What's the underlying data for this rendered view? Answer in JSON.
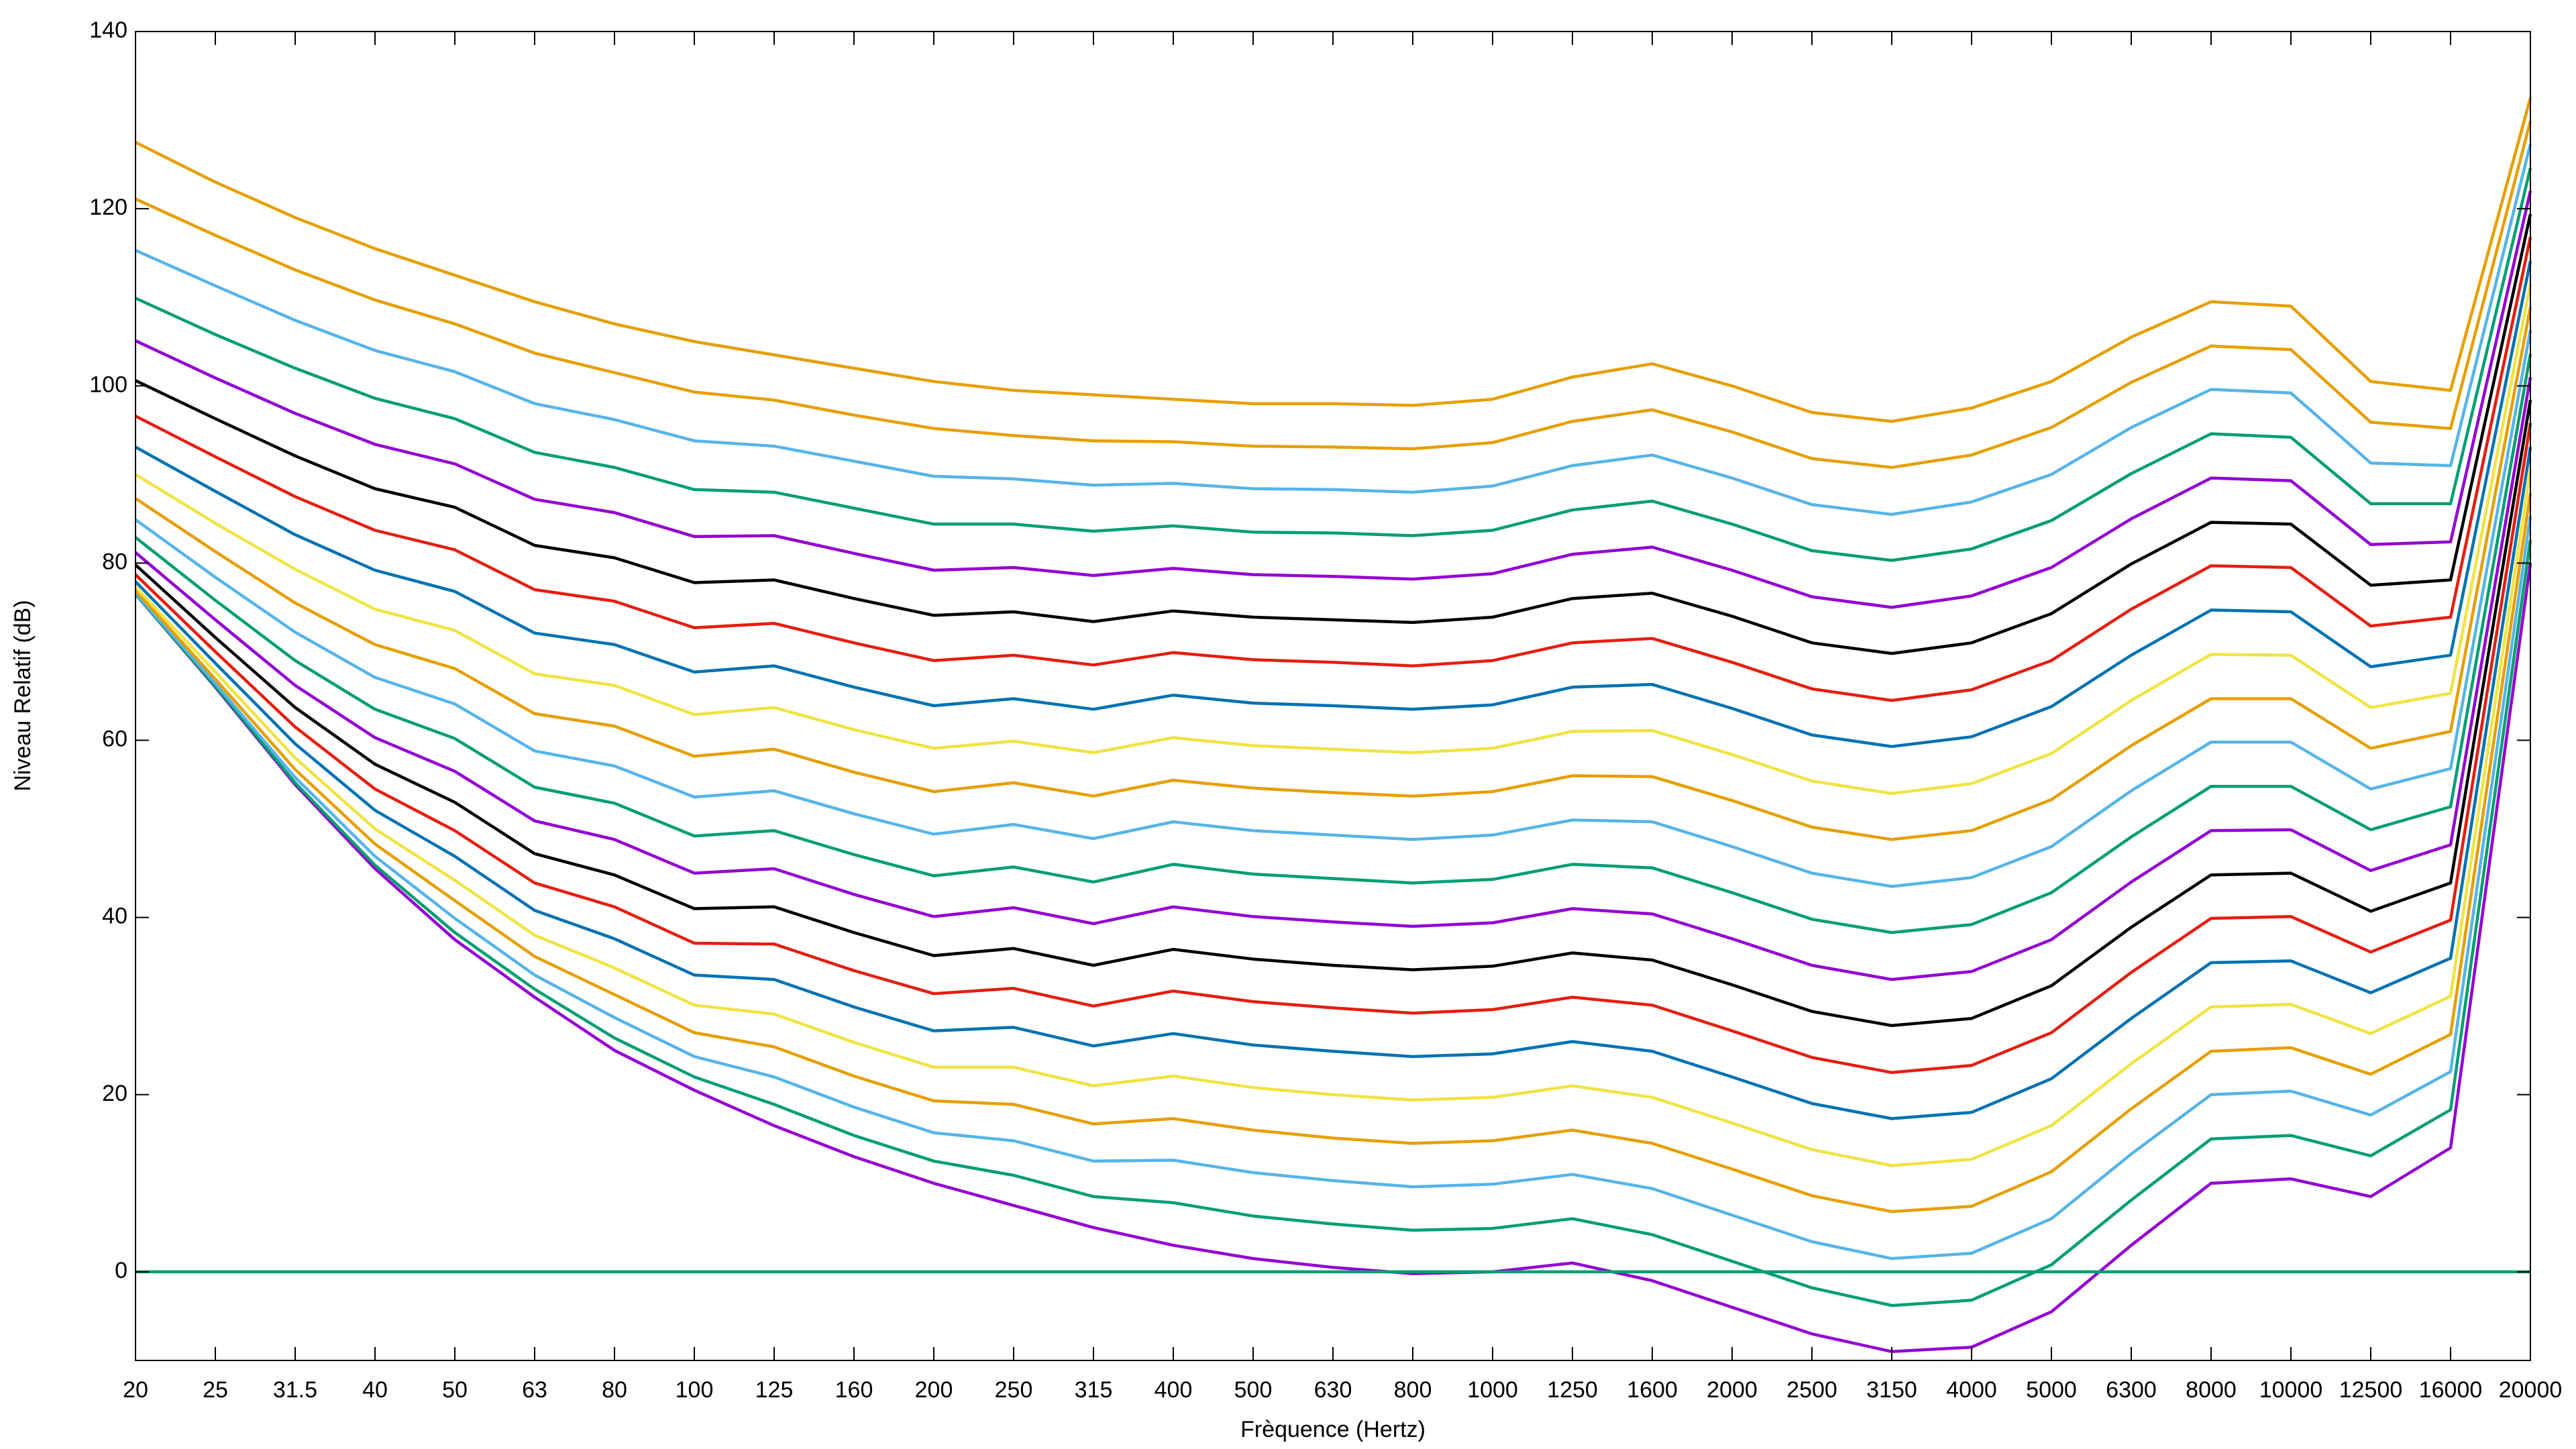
{
  "chart_data": {
    "type": "line",
    "xlabel": "Frèquence (Hertz)",
    "ylabel": "Niveau Relatif (dB)",
    "categories": [
      "20",
      "25",
      "31.5",
      "40",
      "50",
      "63",
      "80",
      "100",
      "125",
      "160",
      "200",
      "250",
      "315",
      "400",
      "500",
      "630",
      "800",
      "1000",
      "1250",
      "1600",
      "2000",
      "2500",
      "3150",
      "4000",
      "5000",
      "6300",
      "8000",
      "10000",
      "12500",
      "16000",
      "20000"
    ],
    "ylim": [
      -10,
      140
    ],
    "yticks": [
      0,
      20,
      40,
      60,
      80,
      100,
      120,
      140
    ],
    "grid": false,
    "series": [
      {
        "color": "#9400d3",
        "values": [
          76.5,
          66,
          55,
          45.5,
          37.5,
          31,
          25,
          20.5,
          16.5,
          13,
          10,
          7.5,
          5,
          3,
          1.5,
          0.5,
          -0.2,
          0,
          1,
          -1,
          -4,
          -7,
          -9,
          -8.5,
          -4.5,
          3,
          10,
          10.5,
          8.5,
          14,
          80
        ]
      },
      {
        "color": "#009e73",
        "values": [
          76.5,
          66.1,
          55.2,
          45.9,
          38.3,
          31.9,
          26.4,
          22.0,
          18.9,
          15.4,
          12.5,
          10.9,
          8.5,
          7.8,
          6.3,
          5.4,
          4.7,
          4.9,
          6,
          4.2,
          1.2,
          -1.8,
          -3.8,
          -3.2,
          0.8,
          8.1,
          15,
          15.4,
          13.1,
          18.3,
          82.6
        ]
      },
      {
        "color": "#56b4e9",
        "values": [
          76.6,
          66.4,
          55.8,
          46.9,
          39.9,
          33.5,
          28.7,
          24.3,
          22.0,
          18.6,
          15.7,
          14.8,
          12.5,
          12.6,
          11.2,
          10.3,
          9.6,
          9.9,
          11,
          9.4,
          6.4,
          3.4,
          1.5,
          2.1,
          6,
          13.3,
          20,
          20.4,
          17.7,
          22.6,
          85.3
        ]
      },
      {
        "color": "#e69f00",
        "values": [
          76.9,
          66.9,
          56.7,
          48.3,
          41.9,
          35.6,
          31.3,
          27.0,
          25.4,
          22.1,
          19.3,
          18.9,
          16.7,
          17.3,
          16,
          15.1,
          14.5,
          14.8,
          16,
          14.5,
          11.6,
          8.6,
          6.8,
          7.4,
          11.3,
          18.4,
          24.9,
          25.3,
          22.3,
          26.8,
          87.9
        ]
      },
      {
        "color": "#f0e442",
        "values": [
          77.3,
          67.7,
          58,
          50,
          44.2,
          38,
          34.3,
          30.1,
          29.1,
          25.9,
          23.1,
          23.1,
          21,
          22.1,
          20.8,
          20,
          19.4,
          19.7,
          21,
          19.7,
          16.8,
          13.8,
          12,
          12.7,
          16.5,
          23.5,
          29.9,
          30.2,
          26.9,
          31.1,
          90.5
        ]
      },
      {
        "color": "#0072b2",
        "values": [
          77.9,
          68.7,
          59.6,
          52.1,
          46.9,
          40.8,
          37.6,
          33.5,
          33,
          29.9,
          27.2,
          27.6,
          25.5,
          26.9,
          25.6,
          24.9,
          24.3,
          24.6,
          26,
          24.9,
          22,
          19,
          17.3,
          18,
          21.8,
          28.6,
          34.9,
          35.1,
          31.5,
          35.4,
          93.1
        ]
      },
      {
        "color": "#e51e10",
        "values": [
          78.7,
          70,
          61.5,
          54.5,
          49.8,
          43.9,
          41.2,
          37.1,
          37.0,
          34,
          31.4,
          32,
          30,
          31.7,
          30.5,
          29.8,
          29.2,
          29.6,
          31,
          30.1,
          27.2,
          24.2,
          22.5,
          23.3,
          27,
          33.8,
          39.9,
          40.1,
          36.1,
          39.7,
          95.8
        ]
      },
      {
        "color": "#000000",
        "values": [
          79.8,
          71.6,
          63.7,
          57.3,
          53,
          47.2,
          44.8,
          41,
          41.2,
          38.3,
          35.7,
          36.5,
          34.6,
          36.4,
          35.3,
          34.6,
          34.1,
          34.5,
          36,
          35.2,
          32.4,
          29.4,
          27.8,
          28.6,
          32.3,
          38.9,
          44.8,
          45,
          40.7,
          43.9,
          98.4
        ]
      },
      {
        "color": "#9400d3",
        "values": [
          81.2,
          73.6,
          66.2,
          60.3,
          56.5,
          50.9,
          48.8,
          45,
          45.5,
          42.6,
          40.1,
          41.1,
          39.3,
          41.2,
          40.1,
          39.5,
          39,
          39.4,
          41,
          40.4,
          37.6,
          34.6,
          33,
          33.9,
          37.5,
          44,
          49.8,
          49.9,
          45.3,
          48.2,
          101
        ]
      },
      {
        "color": "#009e73",
        "values": [
          82.9,
          75.8,
          69,
          63.5,
          60.2,
          54.7,
          52.9,
          49.2,
          49.8,
          47.1,
          44.7,
          45.7,
          44,
          46,
          44.9,
          44.4,
          43.9,
          44.3,
          46,
          45.6,
          42.8,
          39.8,
          38.3,
          39.2,
          42.8,
          49.1,
          54.8,
          54.8,
          49.9,
          52.5,
          103.6
        ]
      },
      {
        "color": "#56b4e9",
        "values": [
          84.9,
          78.4,
          72.2,
          67.1,
          64.1,
          58.8,
          57.1,
          53.6,
          54.3,
          51.7,
          49.4,
          50.5,
          48.9,
          50.8,
          49.8,
          49.3,
          48.8,
          49.3,
          51,
          50.8,
          48,
          45,
          43.5,
          44.5,
          48,
          54.3,
          59.8,
          59.8,
          54.5,
          56.8,
          106.3
        ]
      },
      {
        "color": "#e69f00",
        "values": [
          87.3,
          81.3,
          75.5,
          70.8,
          68.1,
          63,
          61.6,
          58.2,
          59,
          56.4,
          54.2,
          55.2,
          53.7,
          55.5,
          54.6,
          54.1,
          53.7,
          54.2,
          56,
          55.9,
          53.2,
          50.2,
          48.8,
          49.8,
          53.3,
          59.4,
          64.7,
          64.7,
          59.1,
          61,
          108.9
        ]
      },
      {
        "color": "#f0e442",
        "values": [
          90,
          84.5,
          79.3,
          74.8,
          72.4,
          67.5,
          66.2,
          62.9,
          63.7,
          61.2,
          59.1,
          59.9,
          58.6,
          60.3,
          59.4,
          59,
          58.6,
          59.1,
          61,
          61.1,
          58.4,
          55.4,
          54,
          55.1,
          58.5,
          64.5,
          69.7,
          69.6,
          63.7,
          65.3,
          111.5
        ]
      },
      {
        "color": "#0072b2",
        "values": [
          93.1,
          88.1,
          83.2,
          79.2,
          76.8,
          72.1,
          70.8,
          67.7,
          68.4,
          66,
          63.9,
          64.7,
          63.5,
          65.1,
          64.2,
          63.9,
          63.5,
          64,
          66,
          66.3,
          63.6,
          60.6,
          59.3,
          60.4,
          63.8,
          69.6,
          74.7,
          74.5,
          68.3,
          69.6,
          114.1
        ]
      },
      {
        "color": "#e51e10",
        "values": [
          96.6,
          92,
          87.5,
          83.7,
          81.5,
          77,
          75.7,
          72.7,
          73.2,
          71,
          69,
          69.6,
          68.5,
          69.9,
          69.1,
          68.8,
          68.4,
          69,
          71,
          71.5,
          68.8,
          65.8,
          64.5,
          65.7,
          69,
          74.8,
          79.7,
          79.5,
          72.9,
          73.9,
          116.8
        ]
      },
      {
        "color": "#000000",
        "values": [
          100.6,
          96.3,
          92.1,
          88.4,
          86.3,
          82,
          80.6,
          77.8,
          78.1,
          76,
          74.1,
          74.5,
          73.4,
          74.6,
          73.9,
          73.6,
          73.3,
          73.9,
          76,
          76.6,
          74,
          71,
          69.8,
          71,
          74.3,
          79.9,
          84.6,
          84.4,
          77.5,
          78.1,
          119.4
        ]
      },
      {
        "color": "#9400d3",
        "values": [
          105.1,
          100.9,
          96.9,
          93.4,
          91.2,
          87.2,
          85.7,
          83,
          83.1,
          81.1,
          79.2,
          79.5,
          78.6,
          79.4,
          78.7,
          78.5,
          78.2,
          78.8,
          81,
          81.8,
          79.2,
          76.2,
          75,
          76.3,
          79.5,
          85,
          89.6,
          89.3,
          82.1,
          82.4,
          122
        ]
      },
      {
        "color": "#009e73",
        "values": [
          109.9,
          105.8,
          102,
          98.6,
          96.3,
          92.5,
          90.8,
          88.3,
          88,
          86.2,
          84.4,
          84.4,
          83.6,
          84.2,
          83.5,
          83.4,
          83.1,
          83.7,
          86,
          87,
          84.4,
          81.4,
          80.3,
          81.6,
          84.8,
          90.1,
          94.6,
          94.2,
          86.7,
          86.7,
          124.6
        ]
      },
      {
        "color": "#56b4e9",
        "values": [
          115.3,
          111.3,
          107.4,
          104,
          101.6,
          98,
          96.2,
          93.8,
          93.2,
          91.5,
          89.8,
          89.5,
          88.8,
          89,
          88.4,
          88.3,
          88,
          88.7,
          91,
          92.2,
          89.6,
          86.6,
          85.5,
          86.9,
          90,
          95.3,
          99.6,
          99.2,
          91.3,
          91,
          127.3
        ]
      },
      {
        "color": "#e69f00",
        "values": [
          121.1,
          117,
          113.1,
          109.7,
          107,
          103.7,
          101.5,
          99.3,
          98.4,
          96.7,
          95.2,
          94.4,
          93.8,
          93.7,
          93.2,
          93.1,
          92.9,
          93.6,
          96,
          97.3,
          94.8,
          91.8,
          90.8,
          92.2,
          95.3,
          100.4,
          104.5,
          104.1,
          95.9,
          95.2,
          129.9
        ]
      },
      {
        "color": "#e69f00",
        "values": [
          127.5,
          123,
          119,
          115.5,
          112.5,
          109.5,
          107,
          105,
          103.5,
          102,
          100.5,
          99.5,
          99,
          98.5,
          98,
          98,
          97.8,
          98.5,
          101,
          102.5,
          100,
          97,
          96,
          97.5,
          100.5,
          105.5,
          109.5,
          109,
          100.5,
          99.5,
          132.5
        ]
      },
      {
        "color": "#009e73",
        "values": [
          0,
          0,
          0,
          0,
          0,
          0,
          0,
          0,
          0,
          0,
          0,
          0,
          0,
          0,
          0,
          0,
          0,
          0,
          0,
          0,
          0,
          0,
          0,
          0,
          0,
          0,
          0,
          0,
          0,
          0,
          0
        ]
      }
    ]
  }
}
